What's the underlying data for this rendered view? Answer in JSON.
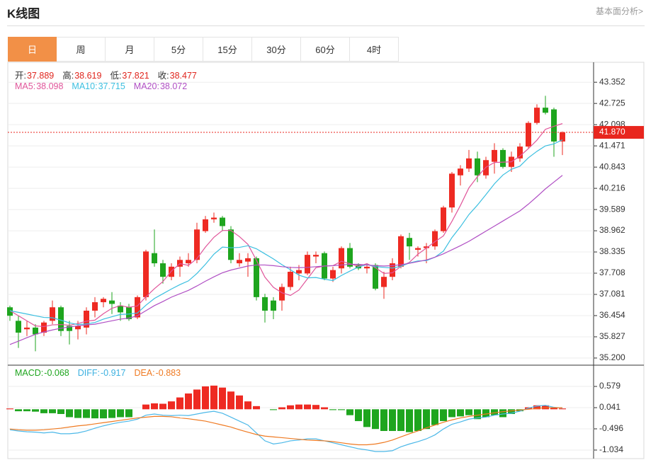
{
  "header": {
    "title": "K线图",
    "link": "基本面分析>"
  },
  "tabs": [
    "日",
    "周",
    "月",
    "5分",
    "15分",
    "30分",
    "60分",
    "4时"
  ],
  "active_tab": 0,
  "chart_data": [
    {
      "type": "candlestick",
      "up_color": "#ee2a22",
      "down_color": "#1ea51e",
      "open": [
        36.7,
        36.3,
        36.05,
        36.1,
        35.95,
        36.3,
        36.7,
        36.15,
        36.05,
        36.1,
        36.6,
        36.85,
        36.9,
        36.75,
        36.7,
        36.4,
        37.0,
        38.3,
        38.0,
        37.6,
        37.9,
        38.0,
        38.1,
        38.95,
        39.3,
        39.35,
        39.0,
        38.0,
        38.05,
        38.15,
        37.0,
        36.9,
        36.9,
        37.3,
        37.7,
        37.7,
        38.2,
        38.3,
        37.55,
        37.85,
        38.45,
        37.95,
        37.85,
        37.95,
        37.3,
        37.6,
        37.9,
        38.75,
        38.4,
        38.45,
        38.5,
        38.95,
        39.65,
        40.6,
        40.8,
        41.1,
        40.6,
        41.0,
        41.35,
        40.85,
        41.1,
        41.45,
        42.15,
        42.6,
        42.55,
        41.6
      ],
      "high": [
        36.75,
        36.45,
        36.3,
        36.2,
        36.3,
        36.9,
        36.75,
        36.3,
        36.3,
        36.7,
        37.0,
        37.0,
        37.15,
        36.85,
        36.8,
        37.05,
        38.4,
        39.0,
        38.1,
        38.0,
        38.2,
        38.3,
        39.2,
        39.4,
        39.5,
        39.4,
        39.1,
        38.3,
        38.3,
        38.2,
        37.1,
        37.0,
        37.4,
        37.9,
        37.95,
        38.35,
        38.35,
        38.35,
        37.9,
        38.5,
        38.6,
        38.0,
        38.0,
        38.0,
        37.75,
        38.15,
        38.85,
        38.9,
        38.5,
        38.6,
        39.0,
        39.7,
        40.7,
        40.9,
        41.35,
        41.3,
        41.15,
        41.55,
        41.4,
        41.3,
        41.55,
        42.2,
        42.7,
        42.95,
        42.6,
        41.9
      ],
      "low": [
        36.3,
        35.5,
        35.85,
        35.4,
        35.85,
        36.2,
        35.85,
        35.6,
        35.75,
        35.9,
        36.4,
        36.7,
        36.5,
        36.3,
        36.3,
        36.35,
        36.9,
        37.9,
        37.4,
        37.5,
        37.6,
        37.9,
        38.0,
        38.9,
        39.2,
        38.95,
        38.0,
        37.9,
        37.6,
        36.9,
        36.25,
        36.35,
        36.6,
        37.2,
        37.5,
        37.65,
        38.0,
        37.5,
        37.45,
        37.7,
        37.85,
        37.8,
        37.7,
        37.2,
        36.95,
        37.5,
        37.85,
        38.1,
        38.2,
        38.0,
        38.4,
        38.9,
        39.5,
        40.3,
        40.7,
        40.4,
        40.5,
        40.65,
        40.8,
        40.7,
        41.0,
        41.4,
        42.1,
        42.4,
        41.15,
        41.2
      ],
      "close": [
        36.45,
        35.95,
        36.1,
        35.9,
        36.25,
        36.7,
        36.0,
        36.0,
        36.15,
        36.6,
        36.85,
        36.95,
        36.8,
        36.55,
        36.35,
        37.0,
        38.35,
        38.0,
        37.6,
        37.9,
        38.1,
        38.1,
        39.0,
        39.3,
        39.35,
        39.1,
        38.1,
        38.1,
        38.15,
        37.0,
        36.6,
        36.6,
        37.3,
        37.75,
        37.8,
        38.25,
        38.25,
        37.55,
        37.8,
        38.45,
        37.9,
        37.85,
        37.9,
        37.25,
        37.6,
        38.0,
        38.8,
        38.5,
        38.45,
        38.5,
        38.95,
        39.65,
        40.65,
        40.8,
        41.1,
        40.6,
        41.05,
        41.35,
        40.85,
        41.15,
        41.45,
        42.15,
        42.6,
        42.45,
        41.6,
        41.87
      ],
      "ylim": [
        35.01,
        43.9
      ],
      "yticks": [
        43.352,
        42.725,
        42.098,
        41.471,
        40.843,
        40.216,
        39.589,
        38.962,
        38.335,
        37.708,
        37.081,
        36.454,
        35.827,
        {
          "value": 35.2,
          "label": "35.200"
        }
      ],
      "grid": true,
      "info": [
        {
          "label": "开:",
          "value": 37.889,
          "color": "#e0261e"
        },
        {
          "label": "高:",
          "value": 38.619,
          "color": "#e0261e"
        },
        {
          "label": "低:",
          "value": 37.821,
          "color": "#e0261e"
        },
        {
          "label": "收:",
          "value": 38.477,
          "color": "#e0261e"
        }
      ],
      "lines": [
        {
          "name": "MA5:",
          "legend_value": 38.098,
          "color": "#e0559a",
          "values": [
            36.6,
            36.45,
            36.3,
            36.15,
            36.13,
            36.18,
            36.19,
            36.17,
            36.22,
            36.29,
            36.32,
            36.51,
            36.67,
            36.75,
            36.7,
            36.74,
            37.01,
            37.25,
            37.46,
            37.77,
            37.99,
            37.94,
            38.14,
            38.48,
            38.77,
            38.97,
            38.97,
            38.79,
            38.56,
            38.09,
            37.59,
            37.29,
            37.13,
            37.05,
            37.21,
            37.54,
            37.87,
            37.92,
            37.93,
            38.06,
            37.99,
            37.91,
            37.99,
            37.87,
            37.7,
            37.72,
            37.91,
            38.03,
            38.27,
            38.45,
            38.64,
            38.81,
            39.24,
            39.71,
            40.23,
            40.56,
            40.84,
            40.98,
            40.99,
            41.0,
            41.17,
            41.39,
            41.64,
            41.96,
            42.05,
            42.13
          ]
        },
        {
          "name": "MA10:",
          "legend_value": 37.715,
          "color": "#3bbfe0",
          "values": [
            36.6,
            36.55,
            36.5,
            36.45,
            36.4,
            36.39,
            36.32,
            36.24,
            36.19,
            36.21,
            36.25,
            36.35,
            36.42,
            36.49,
            36.5,
            36.53,
            36.76,
            36.96,
            37.1,
            37.24,
            37.37,
            37.48,
            37.7,
            37.97,
            38.27,
            38.48,
            38.46,
            38.47,
            38.52,
            38.43,
            38.28,
            38.13,
            37.96,
            37.81,
            37.65,
            37.57,
            37.58,
            37.53,
            37.49,
            37.64,
            37.77,
            37.89,
            37.96,
            37.9,
            37.88,
            37.86,
            37.91,
            38.01,
            38.07,
            38.08,
            38.18,
            38.36,
            38.76,
            39.08,
            39.44,
            39.72,
            40.03,
            40.35,
            40.61,
            40.78,
            40.87,
            41.12,
            41.31,
            41.47,
            41.53,
            41.65
          ]
        },
        {
          "name": "MA20:",
          "legend_value": 38.072,
          "color": "#b04fc4",
          "values": [
            35.6,
            35.7,
            35.8,
            35.9,
            35.97,
            36.03,
            36.08,
            36.12,
            36.15,
            36.18,
            36.2,
            36.25,
            36.3,
            36.35,
            36.38,
            36.45,
            36.6,
            36.75,
            36.87,
            37.0,
            37.1,
            37.2,
            37.33,
            37.47,
            37.6,
            37.72,
            37.8,
            37.86,
            37.92,
            37.95,
            37.95,
            37.93,
            37.9,
            37.88,
            37.87,
            37.88,
            37.9,
            37.92,
            37.93,
            37.95,
            37.97,
            37.97,
            37.95,
            37.93,
            37.92,
            37.93,
            37.96,
            38.0,
            38.05,
            38.1,
            38.18,
            38.28,
            38.4,
            38.52,
            38.65,
            38.8,
            38.95,
            39.1,
            39.25,
            39.4,
            39.55,
            39.75,
            39.97,
            40.2,
            40.4,
            40.6
          ]
        }
      ],
      "last_price": {
        "value": 41.87,
        "label": "41.870"
      }
    },
    {
      "type": "macd",
      "up_color": "#ee2a22",
      "down_color": "#1ea51e",
      "info": [
        {
          "label": "MACD:",
          "value": -0.068,
          "color": "#1ea51e"
        },
        {
          "label": "DIFF:",
          "value": -0.917,
          "color": "#3bb0e0"
        },
        {
          "label": "DEA:",
          "value": -0.883,
          "color": "#ef7a22"
        }
      ],
      "histogram": [
        0.02,
        -0.05,
        -0.05,
        -0.06,
        -0.1,
        -0.1,
        -0.12,
        -0.2,
        -0.22,
        -0.22,
        -0.23,
        -0.23,
        -0.22,
        -0.2,
        -0.2,
        0.0,
        0.12,
        0.15,
        0.14,
        0.2,
        0.3,
        0.4,
        0.5,
        0.58,
        0.6,
        0.55,
        0.45,
        0.35,
        0.2,
        0.08,
        0.0,
        -0.02,
        0.05,
        0.1,
        0.12,
        0.12,
        0.11,
        0.05,
        -0.02,
        -0.02,
        -0.15,
        -0.3,
        -0.45,
        -0.5,
        -0.55,
        -0.55,
        -0.55,
        -0.58,
        -0.55,
        -0.5,
        -0.4,
        -0.3,
        -0.2,
        -0.18,
        -0.15,
        -0.25,
        -0.2,
        -0.15,
        -0.2,
        -0.12,
        -0.05,
        0.05,
        0.1,
        0.1,
        0.05,
        0.02
      ],
      "series": [
        {
          "name": "DIFF",
          "color": "#4cb8e8",
          "values": [
            -0.52,
            -0.55,
            -0.57,
            -0.58,
            -0.6,
            -0.58,
            -0.62,
            -0.62,
            -0.6,
            -0.55,
            -0.48,
            -0.42,
            -0.37,
            -0.33,
            -0.3,
            -0.25,
            -0.15,
            -0.12,
            -0.15,
            -0.16,
            -0.15,
            -0.16,
            -0.12,
            -0.08,
            -0.05,
            -0.1,
            -0.2,
            -0.3,
            -0.4,
            -0.6,
            -0.8,
            -0.88,
            -0.85,
            -0.8,
            -0.78,
            -0.75,
            -0.75,
            -0.8,
            -0.85,
            -0.9,
            -0.95,
            -1.0,
            -1.03,
            -1.07,
            -1.07,
            -1.05,
            -0.95,
            -0.88,
            -0.82,
            -0.75,
            -0.65,
            -0.5,
            -0.38,
            -0.32,
            -0.25,
            -0.22,
            -0.2,
            -0.15,
            -0.12,
            -0.1,
            -0.05,
            0.03,
            0.08,
            0.1,
            0.05,
            0.03
          ]
        },
        {
          "name": "DEA",
          "color": "#ef7a22",
          "values": [
            -0.5,
            -0.52,
            -0.53,
            -0.53,
            -0.52,
            -0.5,
            -0.48,
            -0.45,
            -0.42,
            -0.4,
            -0.37,
            -0.34,
            -0.31,
            -0.28,
            -0.25,
            -0.22,
            -0.2,
            -0.18,
            -0.18,
            -0.19,
            -0.22,
            -0.24,
            -0.27,
            -0.3,
            -0.35,
            -0.4,
            -0.45,
            -0.52,
            -0.58,
            -0.64,
            -0.68,
            -0.7,
            -0.72,
            -0.74,
            -0.76,
            -0.78,
            -0.79,
            -0.8,
            -0.82,
            -0.85,
            -0.88,
            -0.9,
            -0.9,
            -0.88,
            -0.84,
            -0.78,
            -0.7,
            -0.62,
            -0.55,
            -0.47,
            -0.4,
            -0.33,
            -0.27,
            -0.22,
            -0.18,
            -0.15,
            -0.12,
            -0.09,
            -0.06,
            -0.04,
            -0.02,
            0.0,
            0.02,
            0.04,
            0.04,
            0.04
          ]
        }
      ],
      "ylim": [
        -1.25,
        1.1
      ],
      "yticks": [
        0.579,
        0.041,
        -0.496,
        -1.034
      ]
    }
  ]
}
